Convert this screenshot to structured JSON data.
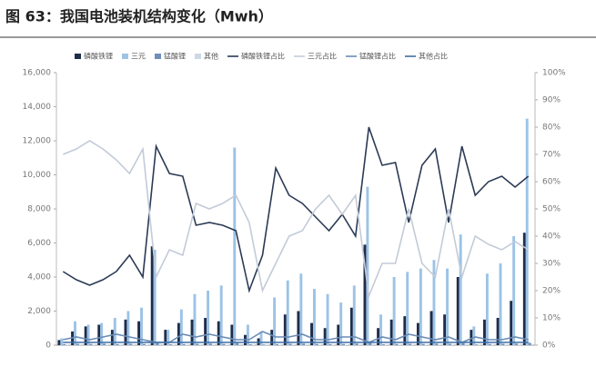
{
  "chart_data": {
    "type": "bar",
    "title": "图 63：我国电池装机结构变化（Mwh）",
    "categories": [
      null,
      null,
      null,
      null,
      null,
      null,
      null,
      null,
      null,
      null,
      null,
      null,
      null,
      null,
      null,
      null,
      null,
      null,
      null,
      null,
      null,
      null,
      null,
      null,
      null,
      null,
      null,
      null,
      null,
      null,
      null,
      null,
      null,
      null,
      null,
      null
    ],
    "ylim": [
      0,
      16000
    ],
    "yticks": [
      0,
      {
        "value": 2000,
        "label": "2,000"
      },
      {
        "value": 4000,
        "label": "4,000"
      },
      {
        "value": 6000,
        "label": "6,000"
      },
      {
        "value": 8000,
        "label": "8,000"
      },
      {
        "value": 10000,
        "label": "10,000"
      },
      {
        "value": 12000,
        "label": "12,000"
      },
      {
        "value": 14000,
        "label": "14,000"
      },
      {
        "value": 16000,
        "label": "16,000"
      }
    ],
    "y2lim": [
      0,
      100
    ],
    "y2ticks": [
      {
        "value": 0,
        "label": "0%"
      },
      {
        "value": 10,
        "label": "10%"
      },
      {
        "value": 20,
        "label": "20%"
      },
      {
        "value": 30,
        "label": "30%"
      },
      {
        "value": 40,
        "label": "40%"
      },
      {
        "value": 50,
        "label": "50%"
      },
      {
        "value": 60,
        "label": "60%"
      },
      {
        "value": 70,
        "label": "70%"
      },
      {
        "value": 80,
        "label": "80%"
      },
      {
        "value": 90,
        "label": "90%"
      },
      {
        "value": 100,
        "label": "100%"
      }
    ],
    "series": [
      {
        "name": "磷酸铁锂",
        "color": "#1f2d4a",
        "values": [
          300,
          800,
          1100,
          1200,
          900,
          1500,
          1400,
          5800,
          900,
          1300,
          1500,
          1600,
          1400,
          1200,
          600,
          400,
          900,
          1800,
          2000,
          1300,
          1000,
          1200,
          2200,
          5900,
          1000,
          1500,
          1700,
          1300,
          2000,
          1800,
          4000,
          900,
          1500,
          1600,
          2600,
          6600
        ]
      },
      {
        "name": "三元",
        "color": "#9dc3e6",
        "values": [
          400,
          1400,
          1200,
          1300,
          1600,
          2000,
          2200,
          5600,
          900,
          2100,
          3000,
          3200,
          3500,
          11600,
          1200,
          800,
          2800,
          3800,
          4200,
          3300,
          3000,
          2500,
          3500,
          9300,
          1800,
          4000,
          4300,
          4500,
          5000,
          4500,
          6500,
          1100,
          4200,
          4800,
          6400,
          13300
        ]
      },
      {
        "name": "锰酸锂",
        "color": "#6f8fb8",
        "values": [
          60,
          80,
          70,
          90,
          60,
          80,
          70,
          150,
          50,
          60,
          80,
          90,
          70,
          120,
          50,
          40,
          60,
          80,
          90,
          70,
          60,
          70,
          90,
          150,
          50,
          70,
          80,
          70,
          90,
          80,
          120,
          40,
          70,
          80,
          90,
          140
        ]
      },
      {
        "name": "其他",
        "color": "#cdd8e6",
        "values": [
          30,
          40,
          30,
          40,
          30,
          40,
          30,
          80,
          20,
          30,
          40,
          40,
          30,
          60,
          20,
          20,
          30,
          40,
          40,
          30,
          30,
          30,
          40,
          80,
          20,
          30,
          40,
          30,
          40,
          40,
          60,
          20,
          30,
          40,
          40,
          70
        ]
      },
      {
        "name": "磷酸铁锂占比",
        "color": "#2b3a55",
        "axis": "y2",
        "values": [
          27,
          24,
          22,
          24,
          27,
          33,
          25,
          73,
          63,
          62,
          44,
          45,
          44,
          42,
          20,
          33,
          65,
          55,
          52,
          47,
          42,
          48,
          40,
          80,
          66,
          67,
          45,
          66,
          72,
          45,
          73,
          55,
          60,
          62,
          58,
          62
        ]
      },
      {
        "name": "三元占比",
        "color": "#c3cbd8",
        "axis": "y2",
        "values": [
          70,
          72,
          75,
          72,
          68,
          63,
          72,
          25,
          35,
          33,
          52,
          50,
          52,
          55,
          45,
          20,
          30,
          40,
          42,
          50,
          55,
          48,
          55,
          18,
          30,
          30,
          50,
          30,
          25,
          50,
          25,
          40,
          37,
          35,
          38,
          35
        ]
      },
      {
        "name": "锰酸锂占比",
        "color": "#6a8cb5",
        "axis": "y2",
        "values": [
          2,
          3,
          2,
          3,
          4,
          3,
          2,
          1,
          1,
          4,
          3,
          4,
          3,
          2,
          2,
          5,
          3,
          3,
          4,
          2,
          2,
          3,
          3,
          1,
          3,
          2,
          4,
          3,
          2,
          3,
          1,
          3,
          2,
          2,
          3,
          2
        ]
      },
      {
        "name": "其他占比",
        "color": "#3f6ea5",
        "axis": "y2",
        "values": [
          1,
          1,
          1,
          1,
          1,
          1,
          1,
          1,
          1,
          1,
          1,
          1,
          1,
          1,
          1,
          1,
          1,
          1,
          1,
          1,
          1,
          1,
          1,
          1,
          1,
          1,
          1,
          1,
          1,
          1,
          1,
          1,
          1,
          1,
          1,
          1
        ]
      }
    ]
  }
}
